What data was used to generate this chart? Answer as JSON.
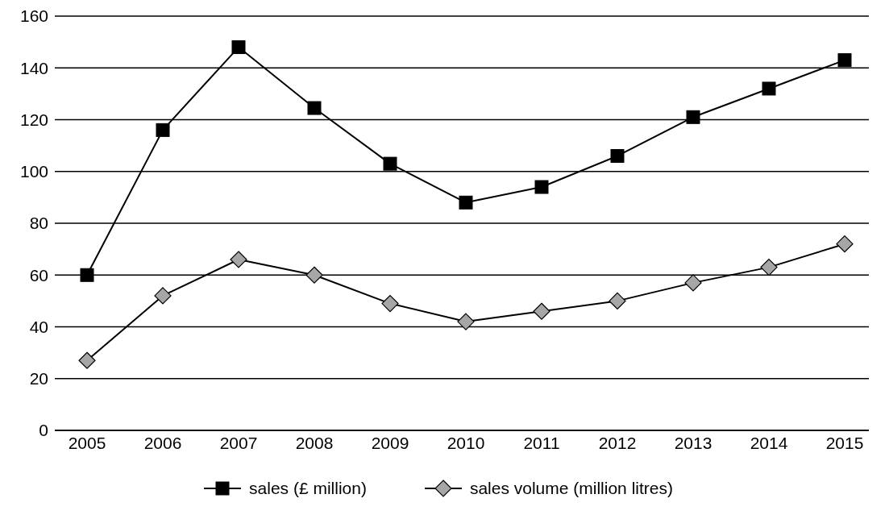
{
  "chart_data": {
    "type": "line",
    "categories": [
      "2005",
      "2006",
      "2007",
      "2008",
      "2009",
      "2010",
      "2011",
      "2012",
      "2013",
      "2014",
      "2015"
    ],
    "series": [
      {
        "name": "sales (£ million)",
        "color": "#000000",
        "marker": "square",
        "values": [
          60,
          116,
          148,
          124.5,
          103,
          88,
          94,
          106,
          121,
          132,
          143
        ]
      },
      {
        "name": "sales volume (million litres)",
        "color": "#a6a6a6",
        "marker": "diamond",
        "values": [
          27,
          52,
          66,
          60,
          49,
          42,
          46,
          50,
          57,
          63,
          72
        ]
      }
    ],
    "ylim": [
      0,
      160
    ],
    "yticks": [
      0,
      20,
      40,
      60,
      80,
      100,
      120,
      140,
      160
    ],
    "grid": "y",
    "legend": "bottom"
  }
}
